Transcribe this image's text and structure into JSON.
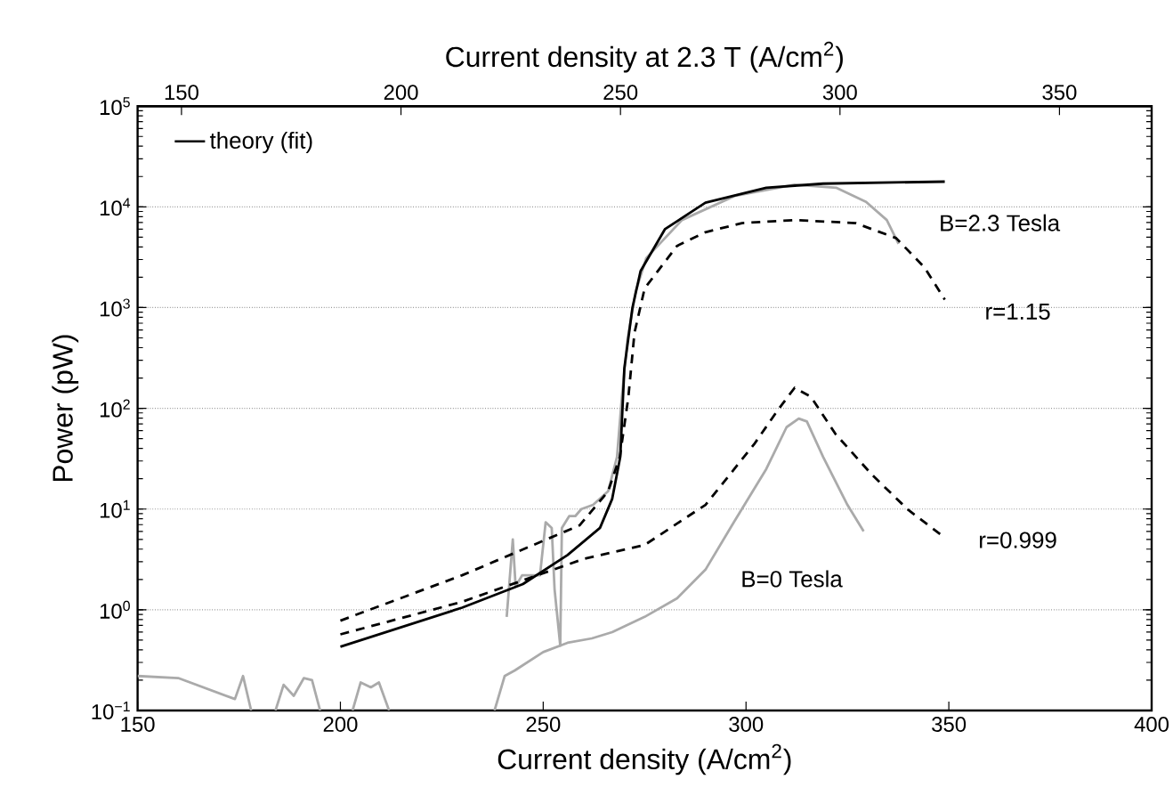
{
  "chart_data": {
    "type": "line",
    "xlabel": "Current density (A/cm$^{2}$)",
    "x2label": "Current density at 2.3 T (A/cm$^{2}$)",
    "ylabel": "Power (pW)",
    "xlim": [
      150,
      400
    ],
    "xticks": [
      150,
      200,
      250,
      300,
      350,
      400
    ],
    "x2lim": [
      140,
      371
    ],
    "x2ticks": [
      150,
      200,
      250,
      300,
      350
    ],
    "ylim": [
      0.1,
      100000
    ],
    "yticks": [
      {
        "value": 0.1,
        "label": "10$^{−1}$"
      },
      {
        "value": 1,
        "label": "10$^{0}$"
      },
      {
        "value": 10,
        "label": "10$^{1}$"
      },
      {
        "value": 100,
        "label": "10$^{2}$"
      },
      {
        "value": 1000,
        "label": "10$^{3}$"
      },
      {
        "value": 10000,
        "label": "10$^{4}$"
      },
      {
        "value": 100000,
        "label": "10$^{5}$"
      }
    ],
    "log": "y",
    "grid": "y",
    "legend": "top left",
    "series": [
      {
        "color": "#aaaaaa",
        "line_style": "solid",
        "x": [
          150,
          160,
          174,
          176,
          178,
          181,
          184,
          186,
          188.5,
          191,
          193,
          195,
          199,
          203,
          205,
          207.5,
          209.5,
          212,
          225,
          238,
          240.5,
          243,
          250,
          256,
          262,
          267,
          275,
          283,
          290,
          297,
          305,
          310,
          313,
          315,
          319,
          325,
          329
        ],
        "values": [
          0.22,
          0.21,
          0.13,
          0.22,
          0.1,
          null,
          0.1,
          0.18,
          0.14,
          0.21,
          0.2,
          0.1,
          null,
          0.1,
          0.19,
          0.17,
          0.19,
          0.1,
          null,
          0.1,
          0.22,
          0.25,
          0.38,
          0.47,
          0.52,
          0.6,
          0.85,
          1.3,
          2.5,
          7.4,
          25,
          65,
          79,
          74,
          33,
          11,
          6
        ]
      },
      {
        "color": "#aaaaaa",
        "line_style": "solid",
        "x": [
          241,
          242.5,
          243.2,
          244.8,
          249.2,
          250.6,
          252.1,
          252.8,
          254.2,
          254.6,
          256.4,
          257.9,
          259.4,
          262.3,
          266,
          268.2,
          269.4,
          270.8,
          272.8,
          275.4,
          284.2,
          297.4,
          312,
          322.2,
          329.6,
          334.7,
          337.6
        ],
        "values": [
          0.85,
          5,
          1.7,
          2.2,
          2.2,
          7.4,
          6.5,
          1.6,
          0.44,
          6.5,
          8.5,
          8.5,
          10,
          11,
          15,
          33,
          130,
          490,
          1450,
          3100,
          7400,
          12900,
          16600,
          15500,
          11200,
          7400,
          4300
        ]
      },
      {
        "color": "#000000",
        "line_style": "dashed",
        "x": [
          200,
          230,
          259,
          266,
          268.9,
          271,
          272.5,
          275,
          283,
          290,
          299,
          312,
          327,
          337,
          344,
          349
        ],
        "values": [
          0.78,
          2.2,
          6.9,
          15,
          33,
          130,
          560,
          1550,
          4100,
          5600,
          6900,
          7400,
          6900,
          4900,
          2500,
          1200
        ]
      },
      {
        "color": "#000000",
        "line_style": "dashed",
        "x": [
          200,
          230,
          260,
          275,
          290,
          302,
          308,
          312,
          316,
          322,
          331,
          340,
          349
        ],
        "values": [
          0.57,
          1.2,
          3.2,
          4.4,
          11,
          44,
          98,
          160,
          130,
          56,
          22,
          9.8,
          5.2
        ]
      },
      {
        "name": "theory (fit)",
        "color": "#000000",
        "line_style": "solid",
        "x": [
          200,
          230,
          245,
          256,
          264,
          267,
          269,
          270,
          272,
          274,
          280,
          290,
          305,
          319,
          349
        ],
        "values": [
          0.43,
          1.05,
          1.8,
          3.5,
          6.5,
          12.6,
          33,
          250,
          1000,
          2300,
          6000,
          11000,
          15500,
          17000,
          17800
        ]
      }
    ],
    "annotations": [
      "B=2.3 Tesla",
      "r=1.15",
      "r=0.999",
      "B=0 Tesla"
    ]
  }
}
